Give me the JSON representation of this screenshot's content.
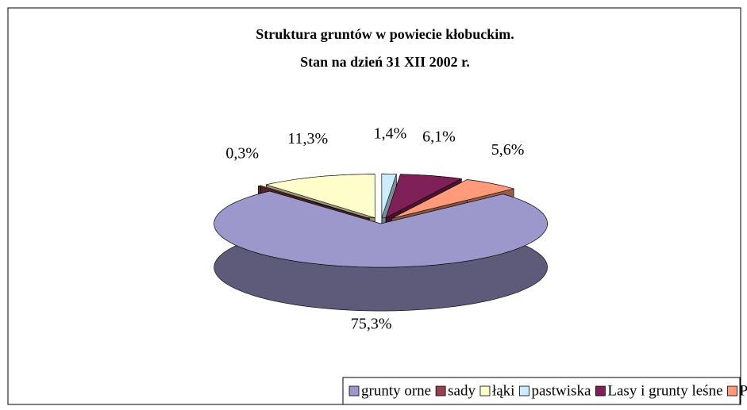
{
  "chart_data": {
    "type": "pie",
    "title": "Struktura gruntów w powiecie kłobuckim.",
    "subtitle": "Stan na dzień 31 XII 2002 r.",
    "categories": [
      "grunty orne",
      "sady",
      "łąki",
      "pastwiska",
      "Lasy i grunty leśne",
      "Pozostałe grunty"
    ],
    "values": [
      75.3,
      0.3,
      11.3,
      1.4,
      6.1,
      5.6
    ],
    "value_labels": [
      "75,3%",
      "0,3%",
      "11,3%",
      "1,4%",
      "6,1%",
      "5,6%"
    ],
    "colors": [
      "#9c98cc",
      "#95424f",
      "#ffffcc",
      "#ccecff",
      "#802058",
      "#ff9a7a"
    ],
    "legend": "bottom"
  }
}
